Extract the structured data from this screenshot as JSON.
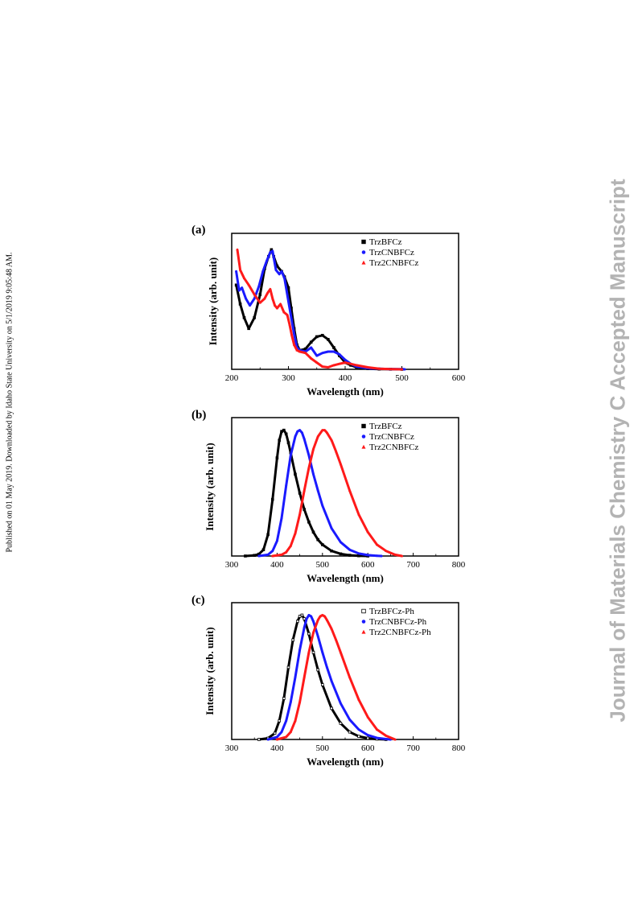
{
  "side_left_text": "Published on 01 May 2019. Downloaded by Idaho State University on 5/1/2019 9:05:48 AM.",
  "side_right_text": "Journal of Materials Chemistry C Accepted Manuscript",
  "colors": {
    "TrzBFCz": "#000000",
    "TrzCNBFCz": "#1a1aff",
    "Trz2CNBFCz": "#ff1a1a"
  },
  "chart_data": [
    {
      "type": "line",
      "panel": "(a)",
      "xlabel": "Wavelength  (nm)",
      "ylabel": "Intensity (arb. unit)",
      "xlim": [
        200,
        600
      ],
      "ylim": [
        0,
        1.0
      ],
      "xticks": [
        200,
        300,
        400,
        500,
        600
      ],
      "legend_position": "top-right",
      "series": [
        {
          "name": "TrzBFCz",
          "marker": "square",
          "color": "#000000",
          "x": [
            208,
            215,
            222,
            230,
            240,
            250,
            258,
            265,
            270,
            274,
            280,
            288,
            293,
            300,
            305,
            310,
            315,
            320,
            330,
            340,
            350,
            360,
            370,
            380,
            390,
            400,
            410,
            420,
            440,
            460,
            480,
            500
          ],
          "y": [
            0.62,
            0.48,
            0.38,
            0.3,
            0.38,
            0.55,
            0.74,
            0.83,
            0.88,
            0.83,
            0.76,
            0.72,
            0.68,
            0.6,
            0.45,
            0.3,
            0.18,
            0.14,
            0.15,
            0.2,
            0.24,
            0.25,
            0.22,
            0.16,
            0.1,
            0.05,
            0.03,
            0.015,
            0.005,
            0.002,
            0.001,
            0.0
          ]
        },
        {
          "name": "TrzCNBFCz",
          "marker": "circle",
          "color": "#1a1aff",
          "x": [
            208,
            213,
            218,
            225,
            232,
            240,
            248,
            255,
            262,
            268,
            272,
            278,
            284,
            288,
            293,
            300,
            305,
            310,
            315,
            320,
            330,
            340,
            350,
            360,
            370,
            380,
            390,
            400,
            410,
            420,
            440,
            460,
            480,
            500,
            505
          ],
          "y": [
            0.72,
            0.58,
            0.6,
            0.52,
            0.47,
            0.52,
            0.61,
            0.72,
            0.8,
            0.86,
            0.87,
            0.73,
            0.7,
            0.72,
            0.67,
            0.5,
            0.38,
            0.26,
            0.16,
            0.14,
            0.13,
            0.16,
            0.1,
            0.12,
            0.13,
            0.13,
            0.11,
            0.07,
            0.04,
            0.02,
            0.008,
            0.004,
            0.002,
            0.001,
            0.0
          ]
        },
        {
          "name": "Trz2CNBFCz",
          "marker": "triangle",
          "color": "#ff1a1a",
          "x": [
            210,
            215,
            222,
            230,
            240,
            250,
            258,
            263,
            268,
            272,
            276,
            280,
            286,
            292,
            298,
            302,
            306,
            310,
            315,
            320,
            330,
            340,
            350,
            360,
            370,
            380,
            390,
            400,
            420,
            440,
            460,
            480,
            500
          ],
          "y": [
            0.88,
            0.73,
            0.67,
            0.62,
            0.55,
            0.49,
            0.52,
            0.56,
            0.59,
            0.52,
            0.47,
            0.45,
            0.48,
            0.42,
            0.4,
            0.33,
            0.25,
            0.18,
            0.14,
            0.13,
            0.12,
            0.08,
            0.05,
            0.02,
            0.015,
            0.03,
            0.04,
            0.05,
            0.03,
            0.015,
            0.005,
            0.002,
            0.0
          ]
        }
      ]
    },
    {
      "type": "line",
      "panel": "(b)",
      "xlabel": "Wavelength  (nm)",
      "ylabel": "Intensity (arb. unit)",
      "xlim": [
        300,
        800
      ],
      "ylim": [
        0,
        1.1
      ],
      "xticks": [
        300,
        400,
        500,
        600,
        700,
        800
      ],
      "legend_position": "top-right",
      "series": [
        {
          "name": "TrzBFCz",
          "marker": "square",
          "color": "#000000",
          "x": [
            330,
            350,
            360,
            370,
            380,
            390,
            400,
            405,
            410,
            415,
            420,
            425,
            430,
            440,
            450,
            460,
            470,
            480,
            490,
            500,
            520,
            540,
            560,
            580,
            600
          ],
          "y": [
            0.0,
            0.005,
            0.015,
            0.05,
            0.17,
            0.45,
            0.78,
            0.92,
            0.99,
            1.0,
            0.97,
            0.9,
            0.82,
            0.65,
            0.5,
            0.37,
            0.27,
            0.19,
            0.13,
            0.09,
            0.04,
            0.017,
            0.006,
            0.002,
            0.0
          ]
        },
        {
          "name": "TrzCNBFCz",
          "marker": "circle",
          "color": "#1a1aff",
          "x": [
            360,
            380,
            390,
            400,
            410,
            420,
            430,
            440,
            445,
            450,
            455,
            460,
            470,
            480,
            490,
            500,
            520,
            540,
            560,
            580,
            600,
            620,
            630
          ],
          "y": [
            0.0,
            0.01,
            0.04,
            0.12,
            0.3,
            0.56,
            0.8,
            0.95,
            0.99,
            1.0,
            0.98,
            0.93,
            0.8,
            0.65,
            0.52,
            0.4,
            0.22,
            0.11,
            0.05,
            0.02,
            0.007,
            0.002,
            0.0
          ]
        },
        {
          "name": "Trz2CNBFCz",
          "marker": "triangle",
          "color": "#ff1a1a",
          "x": [
            390,
            410,
            420,
            430,
            440,
            450,
            460,
            470,
            480,
            490,
            500,
            505,
            510,
            520,
            530,
            540,
            560,
            580,
            600,
            620,
            640,
            660,
            675
          ],
          "y": [
            0.0,
            0.01,
            0.03,
            0.08,
            0.18,
            0.33,
            0.52,
            0.7,
            0.85,
            0.95,
            1.0,
            1.0,
            0.98,
            0.92,
            0.83,
            0.73,
            0.52,
            0.33,
            0.19,
            0.09,
            0.04,
            0.01,
            0.0
          ]
        }
      ]
    },
    {
      "type": "line",
      "panel": "(c)",
      "xlabel": "Wavelength  (nm)",
      "ylabel": "Intensity (arb. unit)",
      "xlim": [
        300,
        800
      ],
      "ylim": [
        0,
        1.1
      ],
      "xticks": [
        300,
        400,
        500,
        600,
        700,
        800
      ],
      "legend_position": "top-right",
      "series": [
        {
          "name": "TrzBFCz-Ph",
          "marker": "open-square",
          "color": "#000000",
          "x": [
            360,
            380,
            395,
            405,
            415,
            425,
            435,
            445,
            450,
            455,
            460,
            470,
            480,
            490,
            500,
            520,
            540,
            560,
            580,
            600,
            620,
            640
          ],
          "y": [
            0.0,
            0.01,
            0.05,
            0.15,
            0.33,
            0.58,
            0.8,
            0.95,
            0.99,
            1.0,
            0.97,
            0.85,
            0.7,
            0.56,
            0.44,
            0.25,
            0.13,
            0.06,
            0.025,
            0.01,
            0.003,
            0.0
          ]
        },
        {
          "name": "TrzCNBFCz-Ph",
          "marker": "circle",
          "color": "#1a1aff",
          "x": [
            380,
            400,
            410,
            420,
            430,
            440,
            450,
            460,
            465,
            470,
            475,
            480,
            490,
            500,
            510,
            520,
            540,
            560,
            580,
            600,
            620,
            640,
            650
          ],
          "y": [
            0.0,
            0.02,
            0.06,
            0.15,
            0.3,
            0.5,
            0.72,
            0.9,
            0.97,
            1.0,
            0.99,
            0.95,
            0.83,
            0.7,
            0.58,
            0.47,
            0.29,
            0.16,
            0.08,
            0.035,
            0.012,
            0.003,
            0.0
          ]
        },
        {
          "name": "Trz2CNBFCz-Ph",
          "marker": "triangle",
          "color": "#ff1a1a",
          "x": [
            400,
            420,
            430,
            440,
            450,
            460,
            470,
            480,
            490,
            495,
            500,
            505,
            510,
            520,
            530,
            540,
            560,
            580,
            600,
            620,
            640,
            660
          ],
          "y": [
            0.0,
            0.02,
            0.06,
            0.15,
            0.3,
            0.5,
            0.7,
            0.86,
            0.96,
            0.99,
            1.0,
            0.99,
            0.96,
            0.89,
            0.8,
            0.7,
            0.5,
            0.32,
            0.18,
            0.08,
            0.03,
            0.0
          ]
        }
      ]
    }
  ]
}
